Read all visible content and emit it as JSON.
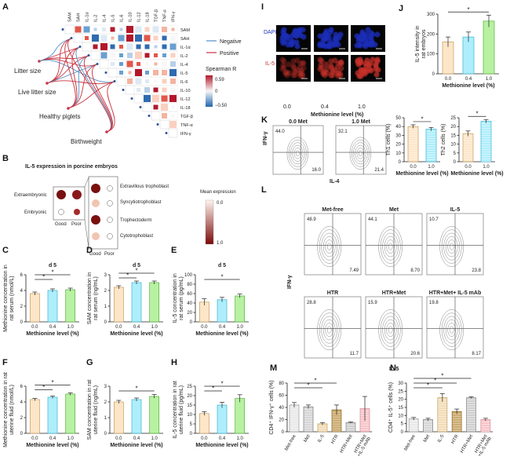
{
  "panel_labels": [
    "A",
    "B",
    "C",
    "D",
    "E",
    "F",
    "G",
    "H",
    "I",
    "J",
    "K",
    "L",
    "M",
    "N"
  ],
  "colors": {
    "c1": "#fde6c8",
    "c2": "#aeeefc",
    "c3": "#b8f1a2",
    "neg": "#4e8fc9",
    "pos": "#c9323f",
    "dapi": "#1d2fb8",
    "il5": "#c8332c"
  },
  "panelA": {
    "genes": [
      "SAM",
      "SAH",
      "IL-1α",
      "IL-2",
      "IL-4",
      "IL-5",
      "IL-6",
      "IL-10",
      "IL-12",
      "IL-18",
      "TGF-β",
      "TNF-α",
      "IFN-γ"
    ],
    "traits": [
      "Litter size",
      "Live litter size",
      "Healthy piglets",
      "Birthweight"
    ],
    "legend": {
      "negative": "Negative",
      "positive": "Positive"
    },
    "scale": {
      "title": "Spearman R",
      "max": "0.59",
      "mid": "0",
      "min": "−0.50"
    }
  },
  "panelB": {
    "title": "IL-5 expression in porcine embryos",
    "rows": [
      "Extraembryonic",
      "Embryonic"
    ],
    "cols": [
      "Good",
      "Poor"
    ],
    "sub": [
      "Extravillous trophoblast",
      "Syncytiotrophoblast",
      "Trophectoderm",
      "Cytotrophoblast"
    ],
    "scale": {
      "title": "Mean expression",
      "min": "0.0",
      "max": "1.0"
    }
  },
  "xlabel": "Methionine level (%)",
  "levels": [
    "0.0",
    "0.4",
    "1.0"
  ],
  "panelI": {
    "rows": [
      "DAPI",
      "IL-5"
    ],
    "cols": [
      "0.0",
      "0.4",
      "1.0"
    ]
  },
  "panelK": {
    "yaxis": "IFN-γ",
    "xaxis": "IL-4",
    "plots": [
      {
        "title": "0.0 Met",
        "ul": "44.0",
        "lr": "16.0"
      },
      {
        "title": "1.0 Met",
        "ul": "32.1",
        "lr": "21.4"
      }
    ]
  },
  "panelL": {
    "yaxis": "IFN-γ",
    "xaxis": "IL-5",
    "plots": [
      {
        "title": "Met-free",
        "ul": "48.9",
        "lr": "7.49"
      },
      {
        "title": "Met",
        "ul": "44.1",
        "lr": "8.70"
      },
      {
        "title": "IL-5",
        "ul": "10.7",
        "lr": "23.8"
      },
      {
        "title": "HTR",
        "ul": "28.8",
        "lr": "11.7"
      },
      {
        "title": "HTR+Met",
        "ul": "15.9",
        "lr": "20.6"
      },
      {
        "title": "HTR+Met+ IL-5 mAb",
        "ul": "19.8",
        "lr": "8.17"
      }
    ]
  },
  "chart_data": [
    {
      "id": "C",
      "type": "bar",
      "title": "d 5",
      "ylabel": "Methionine concentration in rat serum (nmol/L)",
      "xlabel": "Methionine level (%)",
      "categories": [
        "0.0",
        "0.4",
        "1.0"
      ],
      "values": [
        3.6,
        4.0,
        4.1
      ],
      "errors": [
        0.2,
        0.2,
        0.2
      ],
      "ylim": [
        0,
        6
      ],
      "yticks": [
        0,
        2,
        4,
        6
      ],
      "sig": [
        "*",
        "*"
      ]
    },
    {
      "id": "D",
      "type": "bar",
      "title": "d 5",
      "ylabel": "SAM concentration in rat serum (ng/mL)",
      "xlabel": "Methionine level (%)",
      "categories": [
        "0.0",
        "0.4",
        "1.0"
      ],
      "values": [
        2.2,
        2.5,
        2.5
      ],
      "errors": [
        0.1,
        0.1,
        0.1
      ],
      "ylim": [
        0,
        3
      ],
      "yticks": [
        0,
        1,
        2,
        3
      ],
      "sig": [
        "*",
        "*"
      ]
    },
    {
      "id": "E",
      "type": "bar",
      "title": "d 5",
      "ylabel": "IL-5 concentration in rat serum (pg/mL)",
      "xlabel": "Methionine level (%)",
      "categories": [
        "0.0",
        "0.4",
        "1.0"
      ],
      "values": [
        42,
        47,
        55
      ],
      "errors": [
        7,
        5,
        4
      ],
      "ylim": [
        0,
        100
      ],
      "yticks": [
        0,
        20,
        40,
        60,
        80,
        100
      ],
      "sig": [
        "*"
      ]
    },
    {
      "id": "F",
      "type": "bar",
      "title": "",
      "ylabel": "Methionine concentration in rat uterine fluid (nmol/L)",
      "xlabel": "Methionine level (%)",
      "categories": [
        "0.0",
        "0.4",
        "1.0"
      ],
      "values": [
        4.3,
        4.6,
        5.0
      ],
      "errors": [
        0.15,
        0.15,
        0.15
      ],
      "ylim": [
        0,
        6
      ],
      "yticks": [
        0,
        2,
        4,
        6
      ],
      "sig": [
        "*",
        "*"
      ]
    },
    {
      "id": "G",
      "type": "bar",
      "title": "",
      "ylabel": "SAM concentration in rat uterine fluid (ng/mL)",
      "xlabel": "Methionine level (%)",
      "categories": [
        "0.0",
        "0.4",
        "1.0"
      ],
      "values": [
        2.0,
        2.15,
        2.35
      ],
      "errors": [
        0.1,
        0.1,
        0.12
      ],
      "ylim": [
        0,
        3
      ],
      "yticks": [
        0,
        1,
        2,
        3
      ],
      "sig": [
        "*"
      ]
    },
    {
      "id": "H",
      "type": "bar",
      "title": "",
      "ylabel": "IL-5 concentration in rat uterine fluid (pg/mL)",
      "xlabel": "Methionine level (%)",
      "categories": [
        "0.0",
        "0.4",
        "1.0"
      ],
      "values": [
        10.5,
        15,
        18.5
      ],
      "errors": [
        1,
        1.5,
        2
      ],
      "ylim": [
        0,
        25
      ],
      "yticks": [
        0,
        5,
        10,
        15,
        20,
        25
      ],
      "sig": [
        "*",
        "*"
      ]
    },
    {
      "id": "J",
      "type": "bar",
      "title": "",
      "ylabel": "IL-5 intensity in rat embryos",
      "xlabel": "Methionine level (%)",
      "categories": [
        "0.0",
        "0.4",
        "1.0"
      ],
      "values": [
        160,
        185,
        265
      ],
      "errors": [
        25,
        25,
        30
      ],
      "ylim": [
        0,
        300
      ],
      "yticks": [
        0,
        100,
        200,
        300
      ],
      "sig": [
        "*"
      ]
    },
    {
      "id": "K1",
      "type": "bar",
      "title": "",
      "ylabel": "Th1 cells (%)",
      "xlabel": "Methionine level (%)",
      "categories": [
        "0.0",
        "1.0"
      ],
      "values": [
        40,
        37
      ],
      "errors": [
        2,
        2
      ],
      "ylim": [
        0,
        50
      ],
      "yticks": [
        0,
        10,
        20,
        30,
        40,
        50
      ],
      "sig": [
        "*"
      ]
    },
    {
      "id": "K2",
      "type": "bar",
      "title": "",
      "ylabel": "Th2 cells (%)",
      "xlabel": "Methionine level (%)",
      "categories": [
        "0.0",
        "1.0"
      ],
      "values": [
        16,
        23
      ],
      "errors": [
        1.5,
        1
      ],
      "ylim": [
        0,
        25
      ],
      "yticks": [
        0,
        5,
        10,
        15,
        20,
        25
      ],
      "sig": [
        "*"
      ]
    },
    {
      "id": "M",
      "type": "bar",
      "title": "",
      "ylabel": "CD4⁺ IFN-γ⁺ cells (%)",
      "xlabel": "",
      "categories": [
        "Met-free",
        "Met",
        "IL-5",
        "HTR",
        "HTR+Met",
        "HTR+Met +IL-5 mAb"
      ],
      "values": [
        44,
        41,
        13,
        36,
        15,
        38
      ],
      "errors": [
        4,
        3,
        2,
        8,
        1,
        20
      ],
      "ylim": [
        0,
        80
      ],
      "yticks": [
        0,
        20,
        40,
        60,
        80
      ],
      "sig": [
        "*",
        "*"
      ]
    },
    {
      "id": "N",
      "type": "bar",
      "title": "",
      "ylabel": "CD4⁺ IL-5⁺ cells (%)",
      "xlabel": "",
      "categories": [
        "Met-free",
        "Met",
        "IL-5",
        "HTR",
        "HTR+Met",
        "HTR+Met +IL-5 mAb"
      ],
      "values": [
        8,
        7.5,
        21,
        12.5,
        21,
        7.5
      ],
      "errors": [
        0.8,
        0.8,
        2.5,
        1.5,
        0.5,
        0.8
      ],
      "ylim": [
        0,
        30
      ],
      "yticks": [
        0,
        5,
        10,
        15,
        20,
        25,
        30
      ],
      "sig": [
        "*",
        "*",
        "*"
      ]
    }
  ]
}
